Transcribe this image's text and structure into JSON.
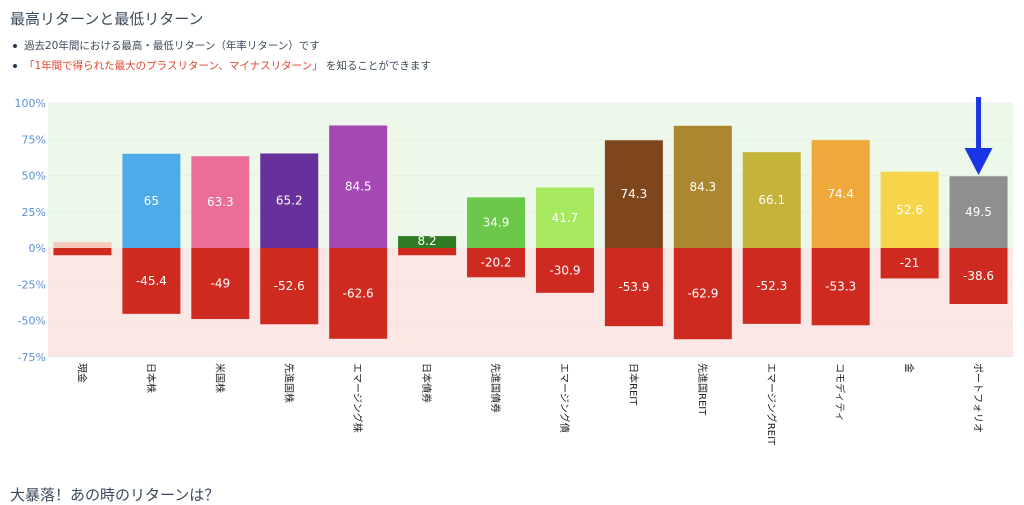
{
  "header": {
    "title": "最高リターンと最低リターン",
    "bullet_1": "過去20年間における最高・最低リターン（年率リターン）です",
    "bullet_2_highlight": "「1年間で得られた最大のプラスリターン、マイナスリターン」",
    "bullet_2_rest": " を知ることができます"
  },
  "next_section_title": "大暴落！あの時のリターンは？",
  "annotation": {
    "type": "arrow-down",
    "target": "ポートフォリオ",
    "color": "#1a35e6"
  },
  "chart_data": {
    "type": "bar",
    "stacked_diverging": true,
    "categories": [
      "現金",
      "日本株",
      "米国株",
      "先進国株",
      "エマージング株",
      "日本債券",
      "先進国債券",
      "エマージング債",
      "日本REIT",
      "先進国REIT",
      "エマージングREIT",
      "コモディティ",
      "金",
      "ポートフォリオ"
    ],
    "series": [
      {
        "role": "max",
        "values": [
          4,
          65,
          63.3,
          65.2,
          84.5,
          8.2,
          34.9,
          41.7,
          74.3,
          84.3,
          66.1,
          74.4,
          52.6,
          49.5
        ],
        "labels": [
          "",
          "65",
          "63.3",
          "65.2",
          "84.5",
          "8.2",
          "34.9",
          "41.7",
          "74.3",
          "84.3",
          "66.1",
          "74.4",
          "52.6",
          "49.5"
        ],
        "colors": [
          "#f5c9b8",
          "#4eaae8",
          "#ec6e98",
          "#67309a",
          "#a448b3",
          "#2f7a22",
          "#6cc84a",
          "#a6e85e",
          "#7f461d",
          "#ad8630",
          "#c4b43a",
          "#efa93b",
          "#f6d54a",
          "#8f8f8f"
        ]
      },
      {
        "role": "min",
        "values": [
          -5,
          -45.4,
          -49,
          -52.6,
          -62.6,
          -5,
          -20.2,
          -30.9,
          -53.9,
          -62.9,
          -52.3,
          -53.3,
          -21,
          -38.6
        ],
        "labels": [
          "",
          "-45.4",
          "-49",
          "-52.6",
          "-62.6",
          "",
          "-20.2",
          "-30.9",
          "-53.9",
          "-62.9",
          "-52.3",
          "-53.3",
          "-21",
          "-38.6"
        ],
        "color": "#cf2a1f"
      }
    ],
    "y_ticks": [
      "100%",
      "75%",
      "50%",
      "25%",
      "0%",
      "-25%",
      "-50%",
      "-75%"
    ],
    "ylim": [
      -75,
      100
    ],
    "positive_bg": "#eef8ea",
    "negative_bg": "#fbe8e6",
    "grid": true
  }
}
